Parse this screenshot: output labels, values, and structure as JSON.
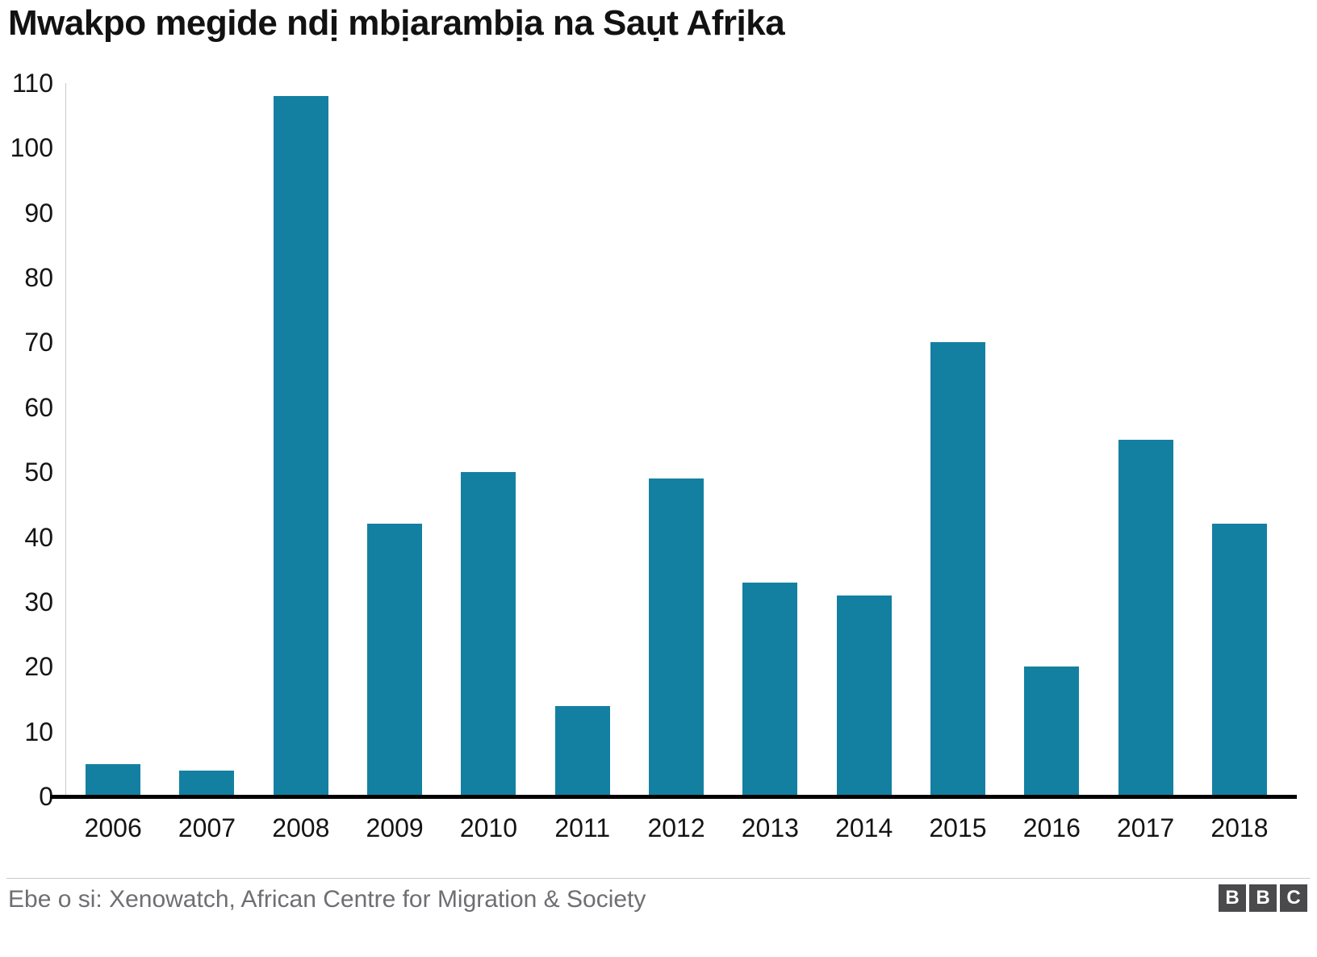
{
  "title": "Mwakpo megide ndị mbịarambịa na Saụt Afrịka",
  "footer": {
    "source": "Ebe o si: Xenowatch, African Centre for Migration & Society",
    "logo_letters": [
      "B",
      "B",
      "C"
    ]
  },
  "colors": {
    "bar": "#1380A1",
    "axis": "#000000",
    "tick_label": "#141414",
    "source_text": "#6e6e73",
    "logo_bg": "#4a4a4c"
  },
  "chart_data": {
    "type": "bar",
    "title": "Mwakpo megide ndị mbịarambịa na Saụt Afrịka",
    "categories": [
      "2006",
      "2007",
      "2008",
      "2009",
      "2010",
      "2011",
      "2012",
      "2013",
      "2014",
      "2015",
      "2016",
      "2017",
      "2018"
    ],
    "values": [
      5,
      4,
      108,
      42,
      50,
      14,
      49,
      33,
      31,
      70,
      20,
      55,
      42
    ],
    "xlabel": "",
    "ylabel": "",
    "ylim": [
      0,
      110
    ],
    "y_ticks": [
      0,
      10,
      20,
      30,
      40,
      50,
      60,
      70,
      80,
      90,
      100,
      110
    ],
    "grid": false,
    "legend": false,
    "bar_color": "#1380A1",
    "source": "Ebe o si: Xenowatch, African Centre for Migration & Society"
  }
}
